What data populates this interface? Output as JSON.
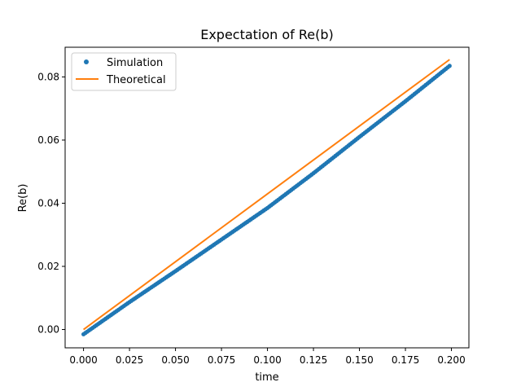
{
  "chart_data": {
    "type": "line",
    "title": "Expectation of Re(b)",
    "xlabel": "time",
    "ylabel": "Re(b)",
    "xlim": [
      -0.01,
      0.2095
    ],
    "ylim": [
      -0.0058,
      0.0894
    ],
    "xticks": [
      "0.000",
      "0.025",
      "0.050",
      "0.075",
      "0.100",
      "0.125",
      "0.150",
      "0.175",
      "0.200"
    ],
    "yticks": [
      "0.00",
      "0.02",
      "0.04",
      "0.06",
      "0.08"
    ],
    "grid": false,
    "legend_position": "upper-left",
    "series": [
      {
        "name": "Simulation",
        "style": "points",
        "color": "#1f77b4",
        "x_range": [
          0.0,
          0.199
        ],
        "n_points": 200,
        "points": [
          [
            0.0,
            -0.0015
          ],
          [
            0.025,
            0.0087
          ],
          [
            0.05,
            0.0185
          ],
          [
            0.075,
            0.0285
          ],
          [
            0.1,
            0.0385
          ],
          [
            0.125,
            0.0495
          ],
          [
            0.15,
            0.061
          ],
          [
            0.175,
            0.0723
          ],
          [
            0.199,
            0.0835
          ]
        ]
      },
      {
        "name": "Theoretical",
        "style": "line",
        "color": "#ff7f0e",
        "x": [
          0.0,
          0.199
        ],
        "y": [
          0.0,
          0.0855
        ]
      }
    ]
  }
}
